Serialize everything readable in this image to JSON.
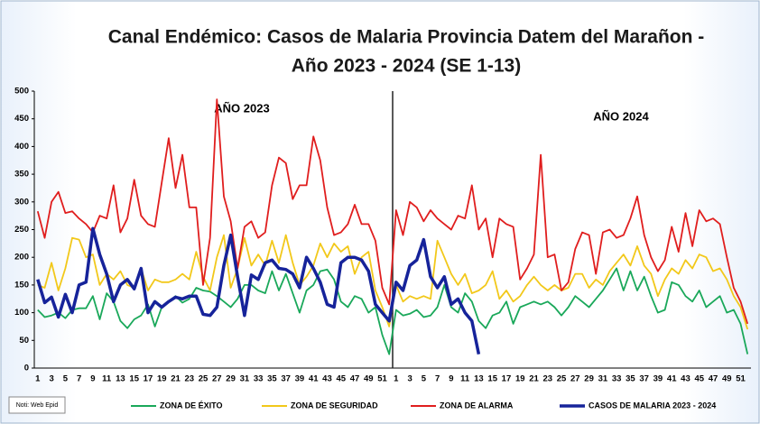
{
  "chart_data": {
    "type": "line",
    "title": "Canal Endémico: Casos de Malaria Provincia Datem del Marañon -",
    "subtitle": "Año 2023 - 2024 (SE 1-13)",
    "annotations": [
      "AÑO 2023",
      "AÑO 2024"
    ],
    "source": "Noti: Web Epid",
    "categories": [
      1,
      null,
      3,
      null,
      5,
      null,
      7,
      null,
      9,
      null,
      11,
      null,
      13,
      null,
      15,
      null,
      17,
      null,
      19,
      null,
      21,
      null,
      23,
      null,
      25,
      null,
      27,
      null,
      29,
      null,
      31,
      null,
      33,
      null,
      35,
      null,
      37,
      null,
      39,
      null,
      41,
      null,
      43,
      null,
      45,
      null,
      47,
      null,
      49,
      null,
      51,
      null,
      1,
      null,
      3,
      null,
      5,
      null,
      7,
      null,
      9,
      null,
      11,
      null,
      13,
      null,
      15,
      null,
      17,
      null,
      19,
      null,
      21,
      null,
      23,
      null,
      25,
      null,
      27,
      null,
      29,
      null,
      31,
      null,
      33,
      null,
      35,
      null,
      37,
      null,
      39,
      null,
      41,
      null,
      43,
      null,
      45,
      null,
      47,
      null,
      49,
      null,
      51,
      null
    ],
    "ylim": [
      0,
      500
    ],
    "yticks": [
      0,
      50,
      100,
      150,
      200,
      250,
      300,
      350,
      400,
      450,
      500
    ],
    "grid": false,
    "series": [
      {
        "name": "ZONA DE ÉXITO",
        "color": "#1aa85a",
        "values": [
          105,
          92,
          95,
          100,
          90,
          105,
          108,
          108,
          130,
          88,
          135,
          120,
          85,
          72,
          88,
          95,
          115,
          75,
          110,
          120,
          130,
          118,
          125,
          145,
          140,
          138,
          130,
          120,
          110,
          125,
          150,
          150,
          140,
          135,
          175,
          140,
          170,
          135,
          100,
          140,
          150,
          175,
          178,
          160,
          120,
          110,
          130,
          125,
          100,
          110,
          60,
          25,
          105,
          95,
          98,
          105,
          92,
          95,
          110,
          150,
          110,
          100,
          135,
          120,
          85,
          72,
          95,
          100,
          120,
          80,
          110,
          115,
          120,
          115,
          120,
          110,
          95,
          110,
          130,
          120,
          110,
          125,
          140,
          160,
          180,
          140,
          175,
          140,
          165,
          130,
          100,
          105,
          155,
          150,
          130,
          120,
          140,
          110,
          120,
          130,
          100,
          105,
          80,
          25
        ]
      },
      {
        "name": "ZONA DE SEGURIDAD",
        "color": "#f2c81a",
        "values": [
          150,
          145,
          190,
          140,
          180,
          235,
          232,
          200,
          205,
          150,
          170,
          160,
          175,
          150,
          145,
          180,
          140,
          160,
          155,
          155,
          160,
          170,
          160,
          210,
          165,
          140,
          200,
          240,
          145,
          180,
          235,
          185,
          205,
          185,
          230,
          190,
          240,
          190,
          150,
          165,
          185,
          225,
          200,
          225,
          210,
          220,
          170,
          200,
          210,
          140,
          110,
          75,
          150,
          120,
          130,
          125,
          130,
          125,
          230,
          200,
          170,
          150,
          170,
          135,
          140,
          150,
          175,
          125,
          140,
          120,
          130,
          150,
          165,
          150,
          140,
          150,
          140,
          145,
          170,
          170,
          145,
          160,
          150,
          175,
          190,
          205,
          185,
          220,
          185,
          170,
          130,
          160,
          180,
          170,
          195,
          180,
          205,
          200,
          175,
          180,
          160,
          130,
          110,
          70
        ]
      },
      {
        "name": "ZONA DE ALARMA",
        "color": "#e01e1e",
        "values": [
          283,
          235,
          300,
          318,
          280,
          283,
          270,
          260,
          245,
          275,
          270,
          330,
          245,
          270,
          340,
          275,
          260,
          255,
          335,
          415,
          325,
          385,
          290,
          290,
          150,
          235,
          485,
          310,
          265,
          180,
          255,
          265,
          235,
          245,
          330,
          380,
          370,
          305,
          330,
          330,
          418,
          375,
          290,
          240,
          245,
          260,
          295,
          260,
          260,
          230,
          145,
          115,
          285,
          240,
          300,
          290,
          265,
          285,
          270,
          260,
          250,
          275,
          270,
          330,
          250,
          270,
          200,
          270,
          260,
          255,
          160,
          180,
          205,
          385,
          200,
          205,
          140,
          155,
          215,
          245,
          240,
          170,
          245,
          250,
          235,
          240,
          270,
          310,
          240,
          200,
          175,
          195,
          255,
          210,
          280,
          220,
          285,
          265,
          270,
          260,
          200,
          145,
          120,
          80
        ]
      },
      {
        "name": "CASOS DE MALARIA 2023 - 2024",
        "color": "#16239a",
        "values": [
          160,
          118,
          128,
          92,
          133,
          100,
          150,
          155,
          252,
          205,
          170,
          120,
          150,
          160,
          143,
          180,
          100,
          120,
          110,
          120,
          128,
          125,
          130,
          130,
          97,
          95,
          110,
          185,
          240,
          165,
          95,
          168,
          160,
          190,
          195,
          180,
          178,
          170,
          145,
          200,
          180,
          155,
          115,
          110,
          190,
          200,
          200,
          195,
          175,
          115,
          100,
          85,
          155,
          140,
          185,
          195,
          232,
          165,
          145,
          165,
          115,
          125,
          100,
          85,
          25,
          null,
          null,
          null,
          null,
          null,
          null,
          null,
          null,
          null,
          null,
          null,
          null,
          null,
          null,
          null,
          null,
          null,
          null,
          null,
          null,
          null,
          null,
          null,
          null,
          null,
          null,
          null,
          null,
          null,
          null,
          null,
          null,
          null,
          null,
          null,
          null,
          null,
          null,
          null
        ]
      }
    ]
  }
}
